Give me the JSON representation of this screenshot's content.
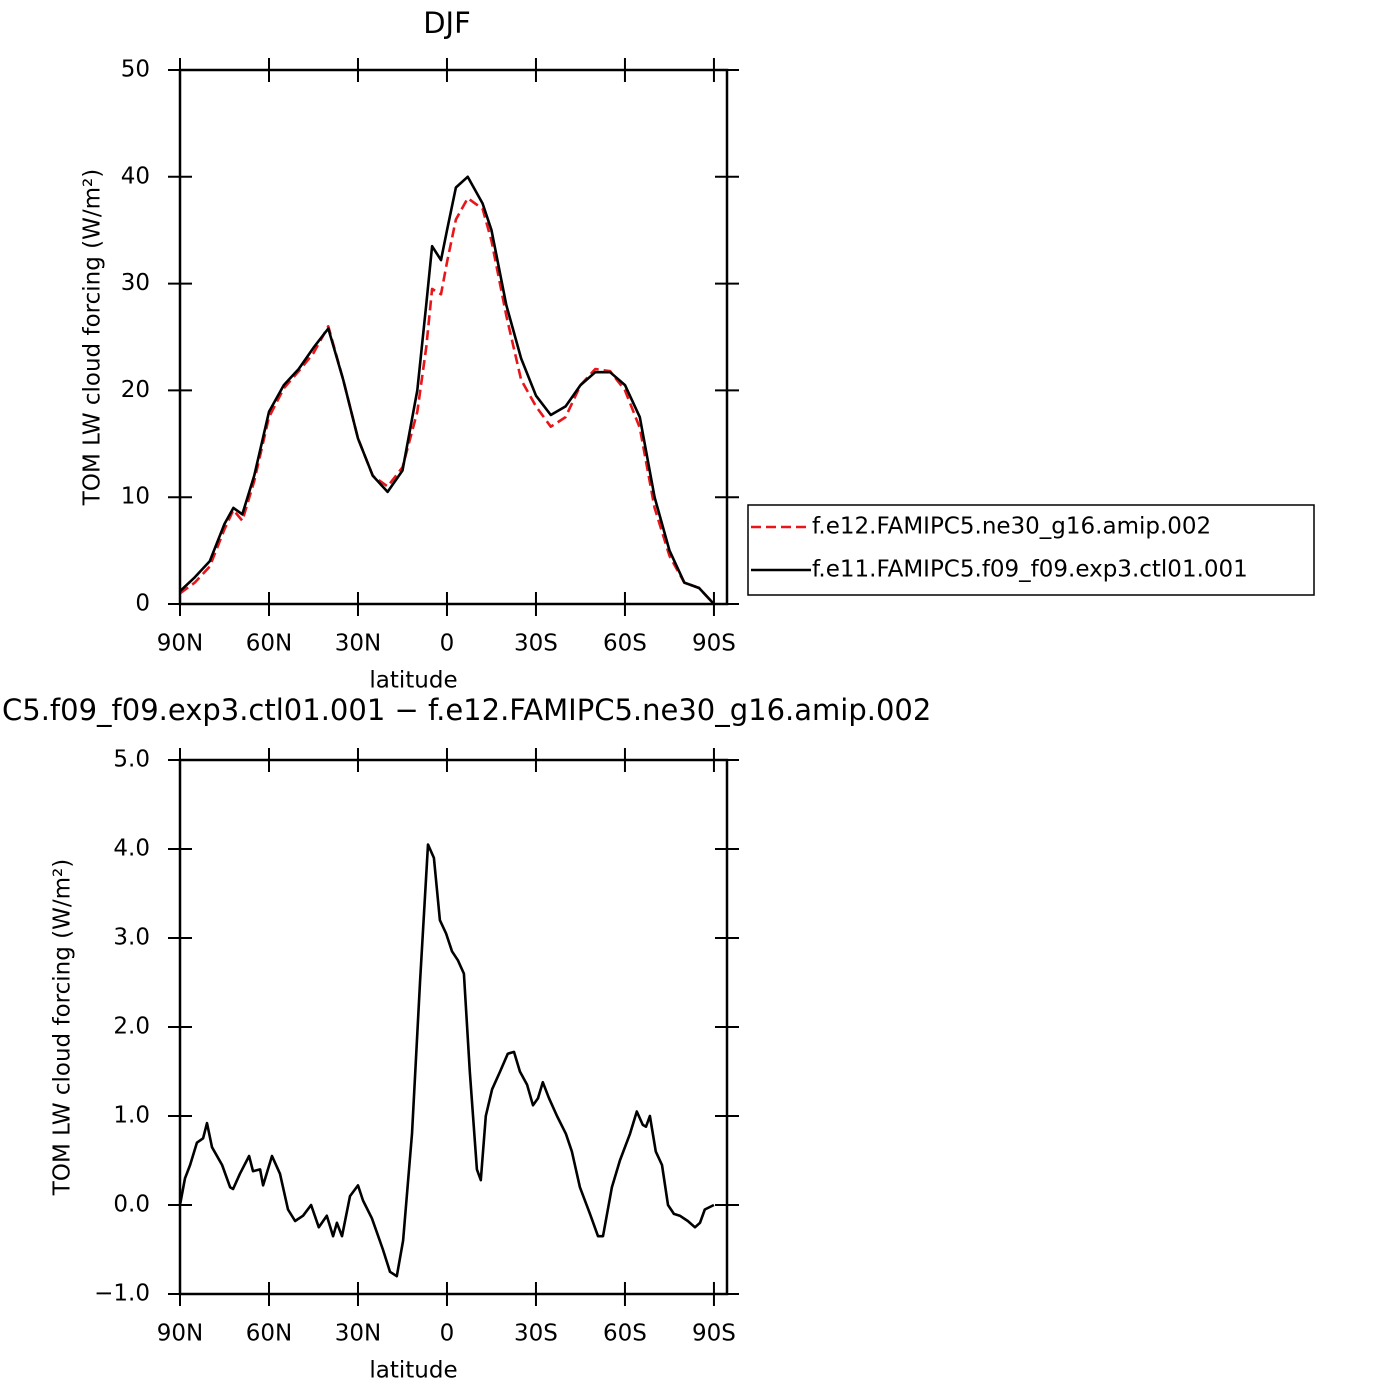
{
  "chart_data": [
    {
      "type": "line",
      "title": "DJF",
      "xlabel": "latitude",
      "ylabel": "TOM LW cloud forcing (W/m²)",
      "x": [
        -90,
        -85,
        -80,
        -75,
        -72,
        -69,
        -65,
        -60,
        -55,
        -50,
        -45,
        -40,
        -35,
        -30,
        -25,
        -20,
        -15,
        -10,
        -7,
        -5,
        -2,
        0,
        3,
        7,
        12,
        15,
        20,
        25,
        30,
        35,
        40,
        45,
        50,
        55,
        60,
        65,
        70,
        75,
        80,
        85,
        90
      ],
      "series": [
        {
          "name": "f.e12.FAMIPC5.ne30_g16.amip.002",
          "color": "#e8161b",
          "dash": true,
          "values": [
            1,
            2,
            3.5,
            7,
            8.8,
            7.8,
            11.5,
            17.5,
            20.2,
            21.8,
            23.5,
            26,
            21,
            15.5,
            12,
            11,
            12.8,
            18,
            24,
            29.5,
            29,
            32,
            36,
            38,
            37,
            34,
            27,
            21,
            18.5,
            16.6,
            17.5,
            20.5,
            22,
            21.8,
            20,
            16.5,
            9,
            4.5,
            2,
            1.5,
            0
          ]
        },
        {
          "name": "f.e11.FAMIPC5.f09_f09.exp3.ctl01.001",
          "color": "#000000",
          "dash": false,
          "values": [
            1.2,
            2.5,
            4,
            7.5,
            9,
            8.4,
            12,
            18,
            20.5,
            22,
            24,
            25.8,
            21,
            15.5,
            12,
            10.5,
            12.5,
            20,
            28,
            33.5,
            32.2,
            35,
            39,
            40,
            37.5,
            35,
            28,
            23,
            19.5,
            17.7,
            18.5,
            20.5,
            21.7,
            21.7,
            20.5,
            17.5,
            10,
            5,
            2,
            1.5,
            0
          ]
        }
      ],
      "xlim": [
        -90,
        94.4
      ],
      "xticks": [
        {
          "value": -90,
          "label": "90N"
        },
        {
          "value": -60,
          "label": "60N"
        },
        {
          "value": -30,
          "label": "30N"
        },
        0,
        {
          "value": 30,
          "label": "30S"
        },
        {
          "value": 60,
          "label": "60S"
        },
        {
          "value": 90,
          "label": "90S"
        }
      ],
      "ylim": [
        0,
        50
      ],
      "yticks": [
        0,
        10,
        20,
        30,
        40,
        50
      ],
      "legend": "outside right"
    },
    {
      "type": "line",
      "title": "C5.f09_f09.exp3.ctl01.001 − f.e12.FAMIPC5.ne30_g16.amip.002",
      "xlabel": "latitude",
      "ylabel": "TOM LW cloud forcing (W/m²)",
      "x": [
        -90,
        -88.3,
        -86.6,
        -84.3,
        -82.2,
        -80.9,
        -79.2,
        -75.8,
        -73.1,
        -72.1,
        -69.8,
        -66.7,
        -65.4,
        -63,
        -62,
        -59,
        -56.3,
        -53.6,
        -51.2,
        -48.5,
        -45.8,
        -43.2,
        -40.5,
        -38.4,
        -37.1,
        -35.4,
        -32.7,
        -30,
        -28.3,
        -25.3,
        -21.6,
        -19.2,
        -16.9,
        -14.8,
        -11.8,
        -9.1,
        -6.4,
        -4.4,
        -2.4,
        -0.3,
        1.7,
        3.7,
        5.7,
        7.7,
        10.1,
        11.4,
        13.1,
        15.2,
        17.9,
        20.5,
        22.6,
        24.6,
        27,
        29,
        30.7,
        32.3,
        34.4,
        37.1,
        40.1,
        42.1,
        44.8,
        48.2,
        50.9,
        52.6,
        55.6,
        58.3,
        61.7,
        64,
        66,
        67.1,
        68.4,
        70.4,
        72.5,
        74.5,
        76.5,
        78.5,
        81.2,
        83.6,
        85.3,
        86.9,
        90
      ],
      "color": "#000000",
      "values": [
        0,
        0.3,
        0.45,
        0.7,
        0.75,
        0.92,
        0.65,
        0.45,
        0.2,
        0.18,
        0.35,
        0.55,
        0.38,
        0.4,
        0.22,
        0.55,
        0.35,
        -0.05,
        -0.18,
        -0.12,
        0,
        -0.25,
        -0.12,
        -0.35,
        -0.2,
        -0.35,
        0.1,
        0.22,
        0.05,
        -0.15,
        -0.5,
        -0.75,
        -0.8,
        -0.4,
        0.8,
        2.5,
        4.05,
        3.9,
        3.2,
        3.05,
        2.85,
        2.75,
        2.6,
        1.5,
        0.4,
        0.28,
        1,
        1.3,
        1.5,
        1.7,
        1.72,
        1.5,
        1.35,
        1.12,
        1.2,
        1.38,
        1.2,
        1,
        0.8,
        0.6,
        0.2,
        -0.1,
        -0.35,
        -0.35,
        0.2,
        0.5,
        0.8,
        1.05,
        0.9,
        0.88,
        1,
        0.6,
        0.45,
        0,
        -0.1,
        -0.12,
        -0.18,
        -0.25,
        -0.2,
        -0.05,
        0
      ],
      "xlim": [
        -90,
        94.4
      ],
      "xticks": [
        {
          "value": -90,
          "label": "90N"
        },
        {
          "value": -60,
          "label": "60N"
        },
        {
          "value": -30,
          "label": "30N"
        },
        0,
        {
          "value": 30,
          "label": "30S"
        },
        {
          "value": 60,
          "label": "60S"
        },
        {
          "value": 90,
          "label": "90S"
        }
      ],
      "ylim": [
        -1,
        5
      ],
      "yticks": [
        {
          "value": -1,
          "label": "−1.0"
        },
        {
          "value": 0,
          "label": "0.0"
        },
        {
          "value": 1,
          "label": "1.0"
        },
        {
          "value": 2,
          "label": "2.0"
        },
        {
          "value": 3,
          "label": "3.0"
        },
        {
          "value": 4,
          "label": "4.0"
        },
        {
          "value": 5,
          "label": "5.0"
        }
      ]
    }
  ]
}
